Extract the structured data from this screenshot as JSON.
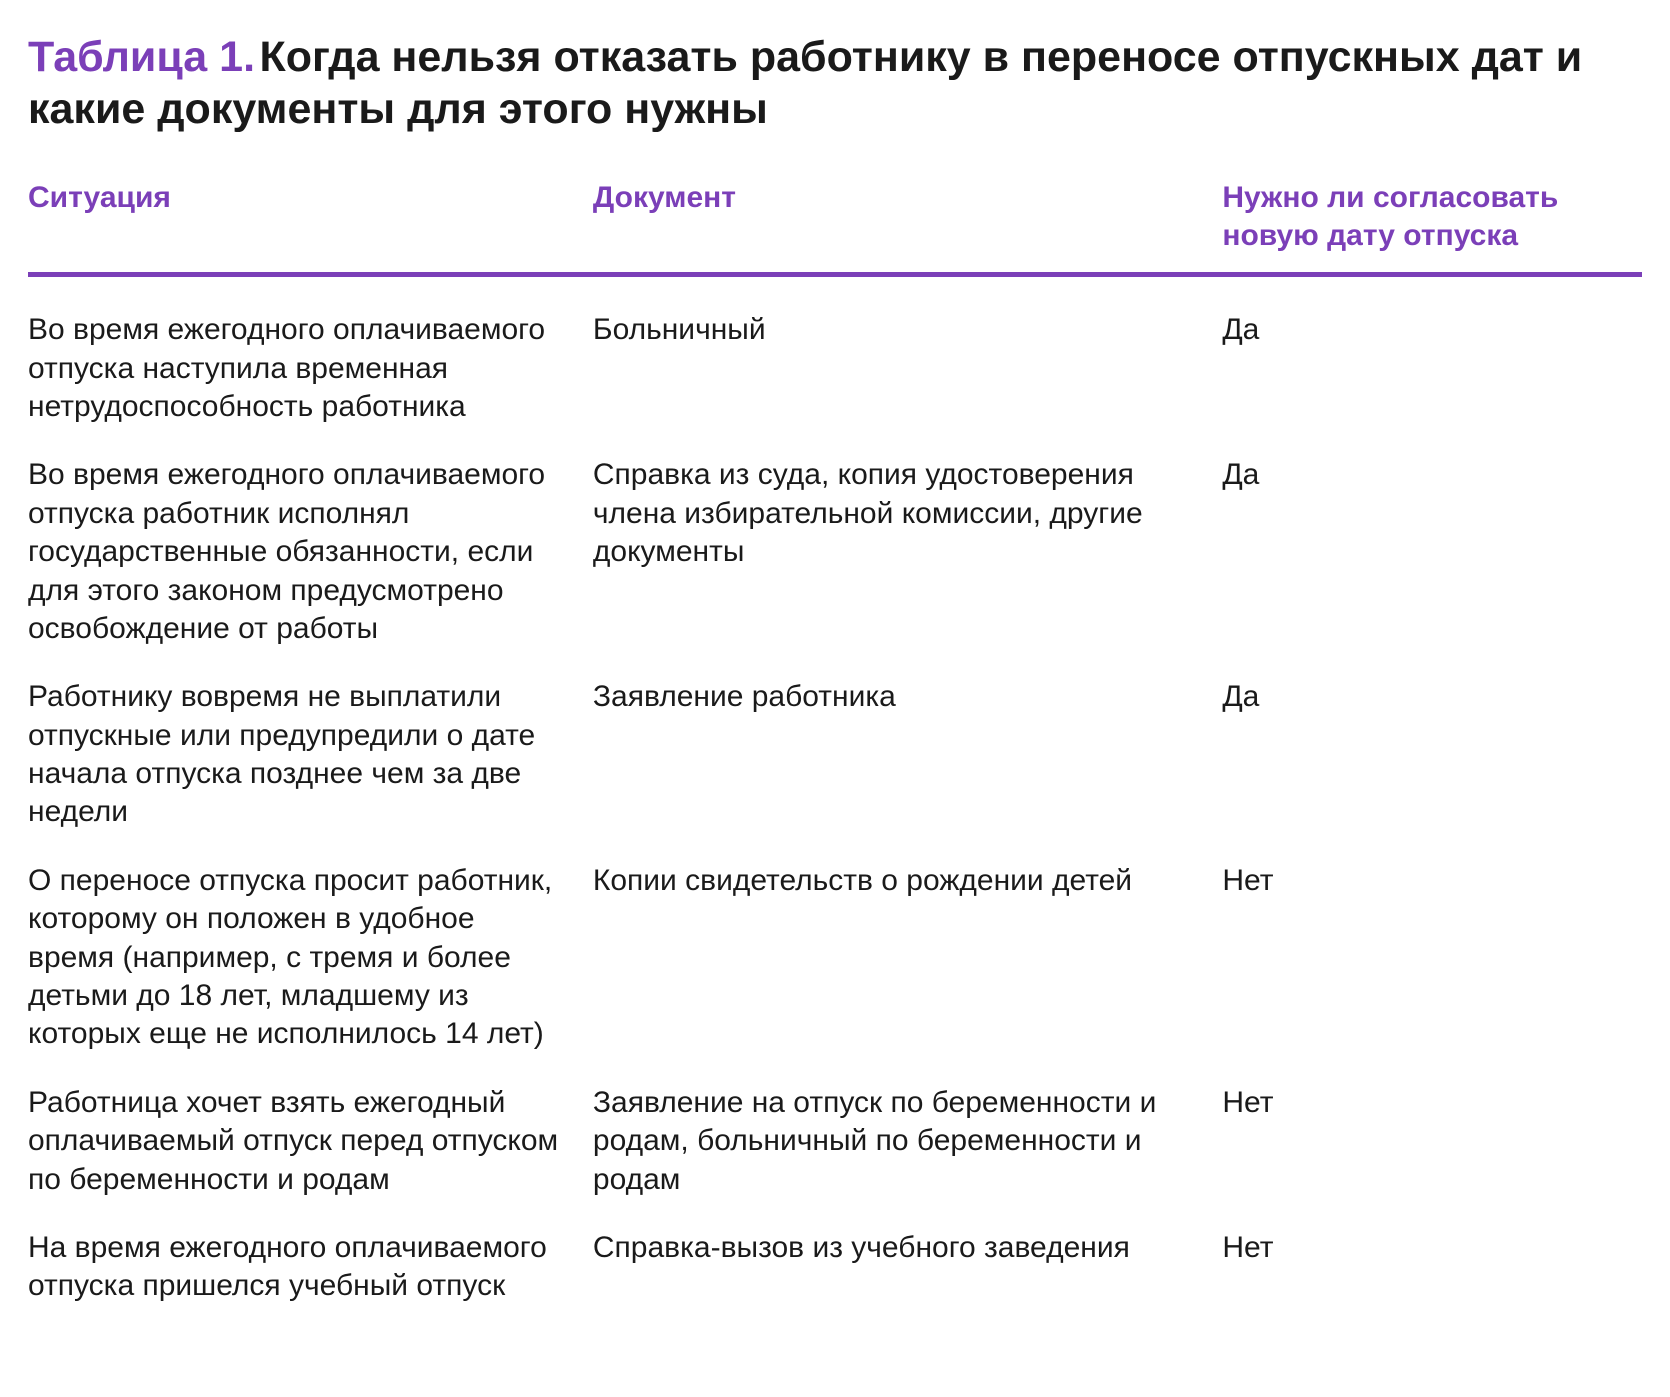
{
  "title": {
    "prefix": "Таблица 1.",
    "main": "Когда нельзя отказать работнику в переносе отпускных дат и какие документы для этого нужны"
  },
  "colors": {
    "accent": "#7b3fb8",
    "text": "#1a1a1a",
    "background": "#ffffff"
  },
  "typography": {
    "title_fontsize": 43,
    "header_fontsize": 30,
    "body_fontsize": 30
  },
  "table": {
    "columns": [
      {
        "key": "situation",
        "label": "Ситуация",
        "width_pct": 35
      },
      {
        "key": "document",
        "label": "Документ",
        "width_pct": 39
      },
      {
        "key": "approval",
        "label": "Нужно ли согласовать новую дату отпуска",
        "width_pct": 26
      }
    ],
    "rows": [
      {
        "situation": "Во время ежегодного оплачива­емого отпуска наступила вре­менная нетрудоспособность работника",
        "document": "Больничный",
        "approval": "Да"
      },
      {
        "situation": "Во время ежегодного оплачивае­мого отпуска работник исполнял государственные обязанности, если для этого законом предусмо­трено освобождение от работы",
        "document": "Справка из суда, копия удостоверения члена избирательной комиссии, дру­гие документы",
        "approval": "Да"
      },
      {
        "situation": "Работнику вовремя не выплатили отпускные или предупредили о дате начала отпуска позднее чем за две недели",
        "document": "Заявление работника",
        "approval": "Да"
      },
      {
        "situation": "О переносе отпуска просит работник, которому он поло­жен в удобное время (например, с тремя и более детьми до 18 лет, младшему из которых еще не исполнилось 14 лет)",
        "document": "Копии свидетельств о рождении детей",
        "approval": "Нет"
      },
      {
        "situation": "Работница хочет взять ежегодный оплачиваемый отпуск перед отпу­ском по беременности и родам",
        "document": "Заявление на отпуск по бере­менности и родам, больничный по беременности и родам",
        "approval": "Нет"
      },
      {
        "situation": "На время ежегодного оплачивае­мого отпуска пришелся учебный отпуск",
        "document": "Справка-вызов из учебного заведения",
        "approval": "Нет"
      }
    ]
  }
}
